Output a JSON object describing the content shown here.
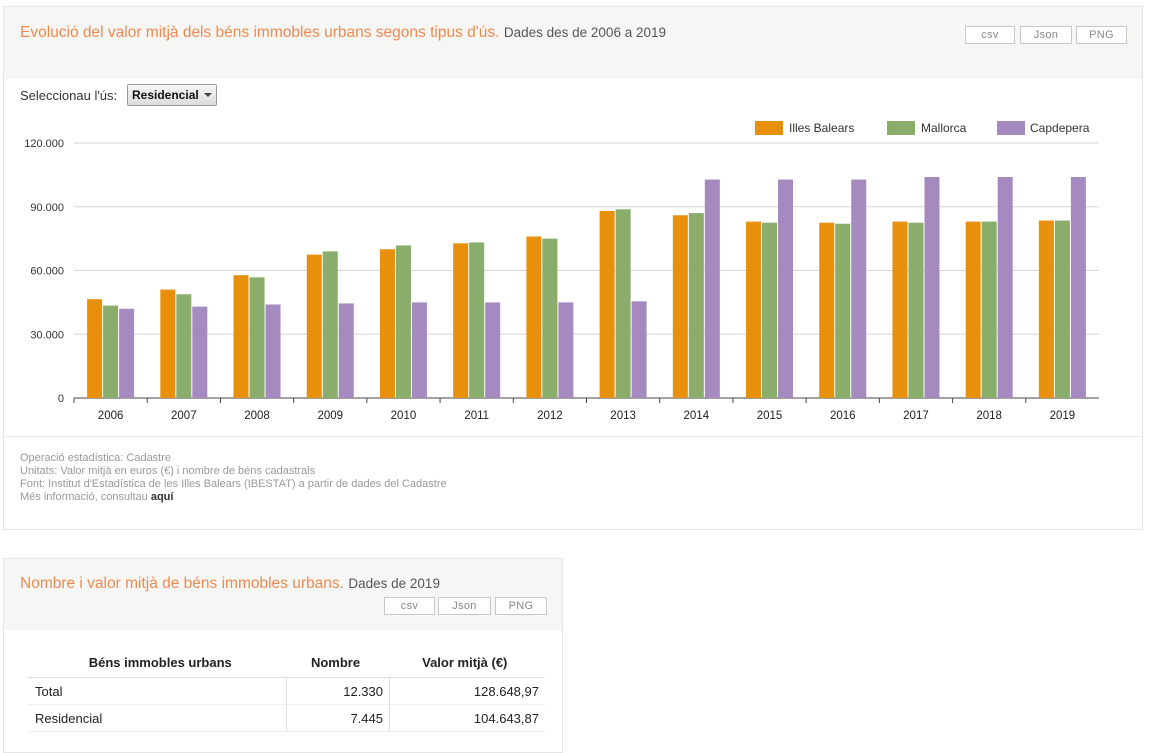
{
  "chart_panel": {
    "title": "Evolució del valor mitjà dels béns immobles urbans segons tipus d'ús.",
    "subtitle": "Dades des de 2006 a 2019",
    "buttons": {
      "csv": "csv",
      "json": "Json",
      "png": "PNG"
    },
    "selector": {
      "label": "Seleccionau l'ús:",
      "value": "Residencial"
    },
    "notes": {
      "operacio": "Operació estadística: Cadastre",
      "unitats": "Unitats: Valor mitjà en euros (€) i nombre de béns cadastrals",
      "font": "Font: Institut d'Estadística de les Illes Balears (IBESTAT) a partir de dades del Cadastre",
      "mes_info": "Més informació, consultau",
      "link": "aquí"
    }
  },
  "chart_data": {
    "type": "bar",
    "categories": [
      "2006",
      "2007",
      "2008",
      "2009",
      "2010",
      "2011",
      "2012",
      "2013",
      "2014",
      "2015",
      "2016",
      "2017",
      "2018",
      "2019"
    ],
    "series": [
      {
        "name": "Illes Balears",
        "color": "#e8900c",
        "values": [
          46500,
          51000,
          57800,
          67500,
          70000,
          72800,
          76000,
          88000,
          86000,
          83000,
          82500,
          83000,
          83000,
          83500
        ]
      },
      {
        "name": "Mallorca",
        "color": "#8aad6c",
        "values": [
          43500,
          48800,
          56800,
          69000,
          71800,
          73200,
          75000,
          88800,
          87000,
          82500,
          82000,
          82500,
          83000,
          83500
        ]
      },
      {
        "name": "Capdepera",
        "color": "#a58ac0",
        "values": [
          42000,
          43000,
          44000,
          44500,
          45000,
          45000,
          45000,
          45500,
          102800,
          102800,
          102800,
          104000,
          104000,
          104000
        ]
      }
    ],
    "yticks": [
      "0",
      "30.000",
      "60.000",
      "90.000",
      "120.000"
    ],
    "ylim": [
      0,
      120000
    ],
    "grid": true,
    "legend_position": "top-right"
  },
  "table_panel": {
    "title": "Nombre i valor mitjà de béns immobles urbans.",
    "subtitle": "Dades de 2019",
    "buttons": {
      "csv": "csv",
      "json": "Json",
      "png": "PNG"
    },
    "headers": [
      "Béns immobles urbans",
      "Nombre",
      "Valor mitjà (€)"
    ],
    "rows": [
      {
        "label": "Total",
        "nombre": "12.330",
        "valor": "128.648,97"
      },
      {
        "label": "Residencial",
        "nombre": "7.445",
        "valor": "104.643,87"
      }
    ]
  }
}
